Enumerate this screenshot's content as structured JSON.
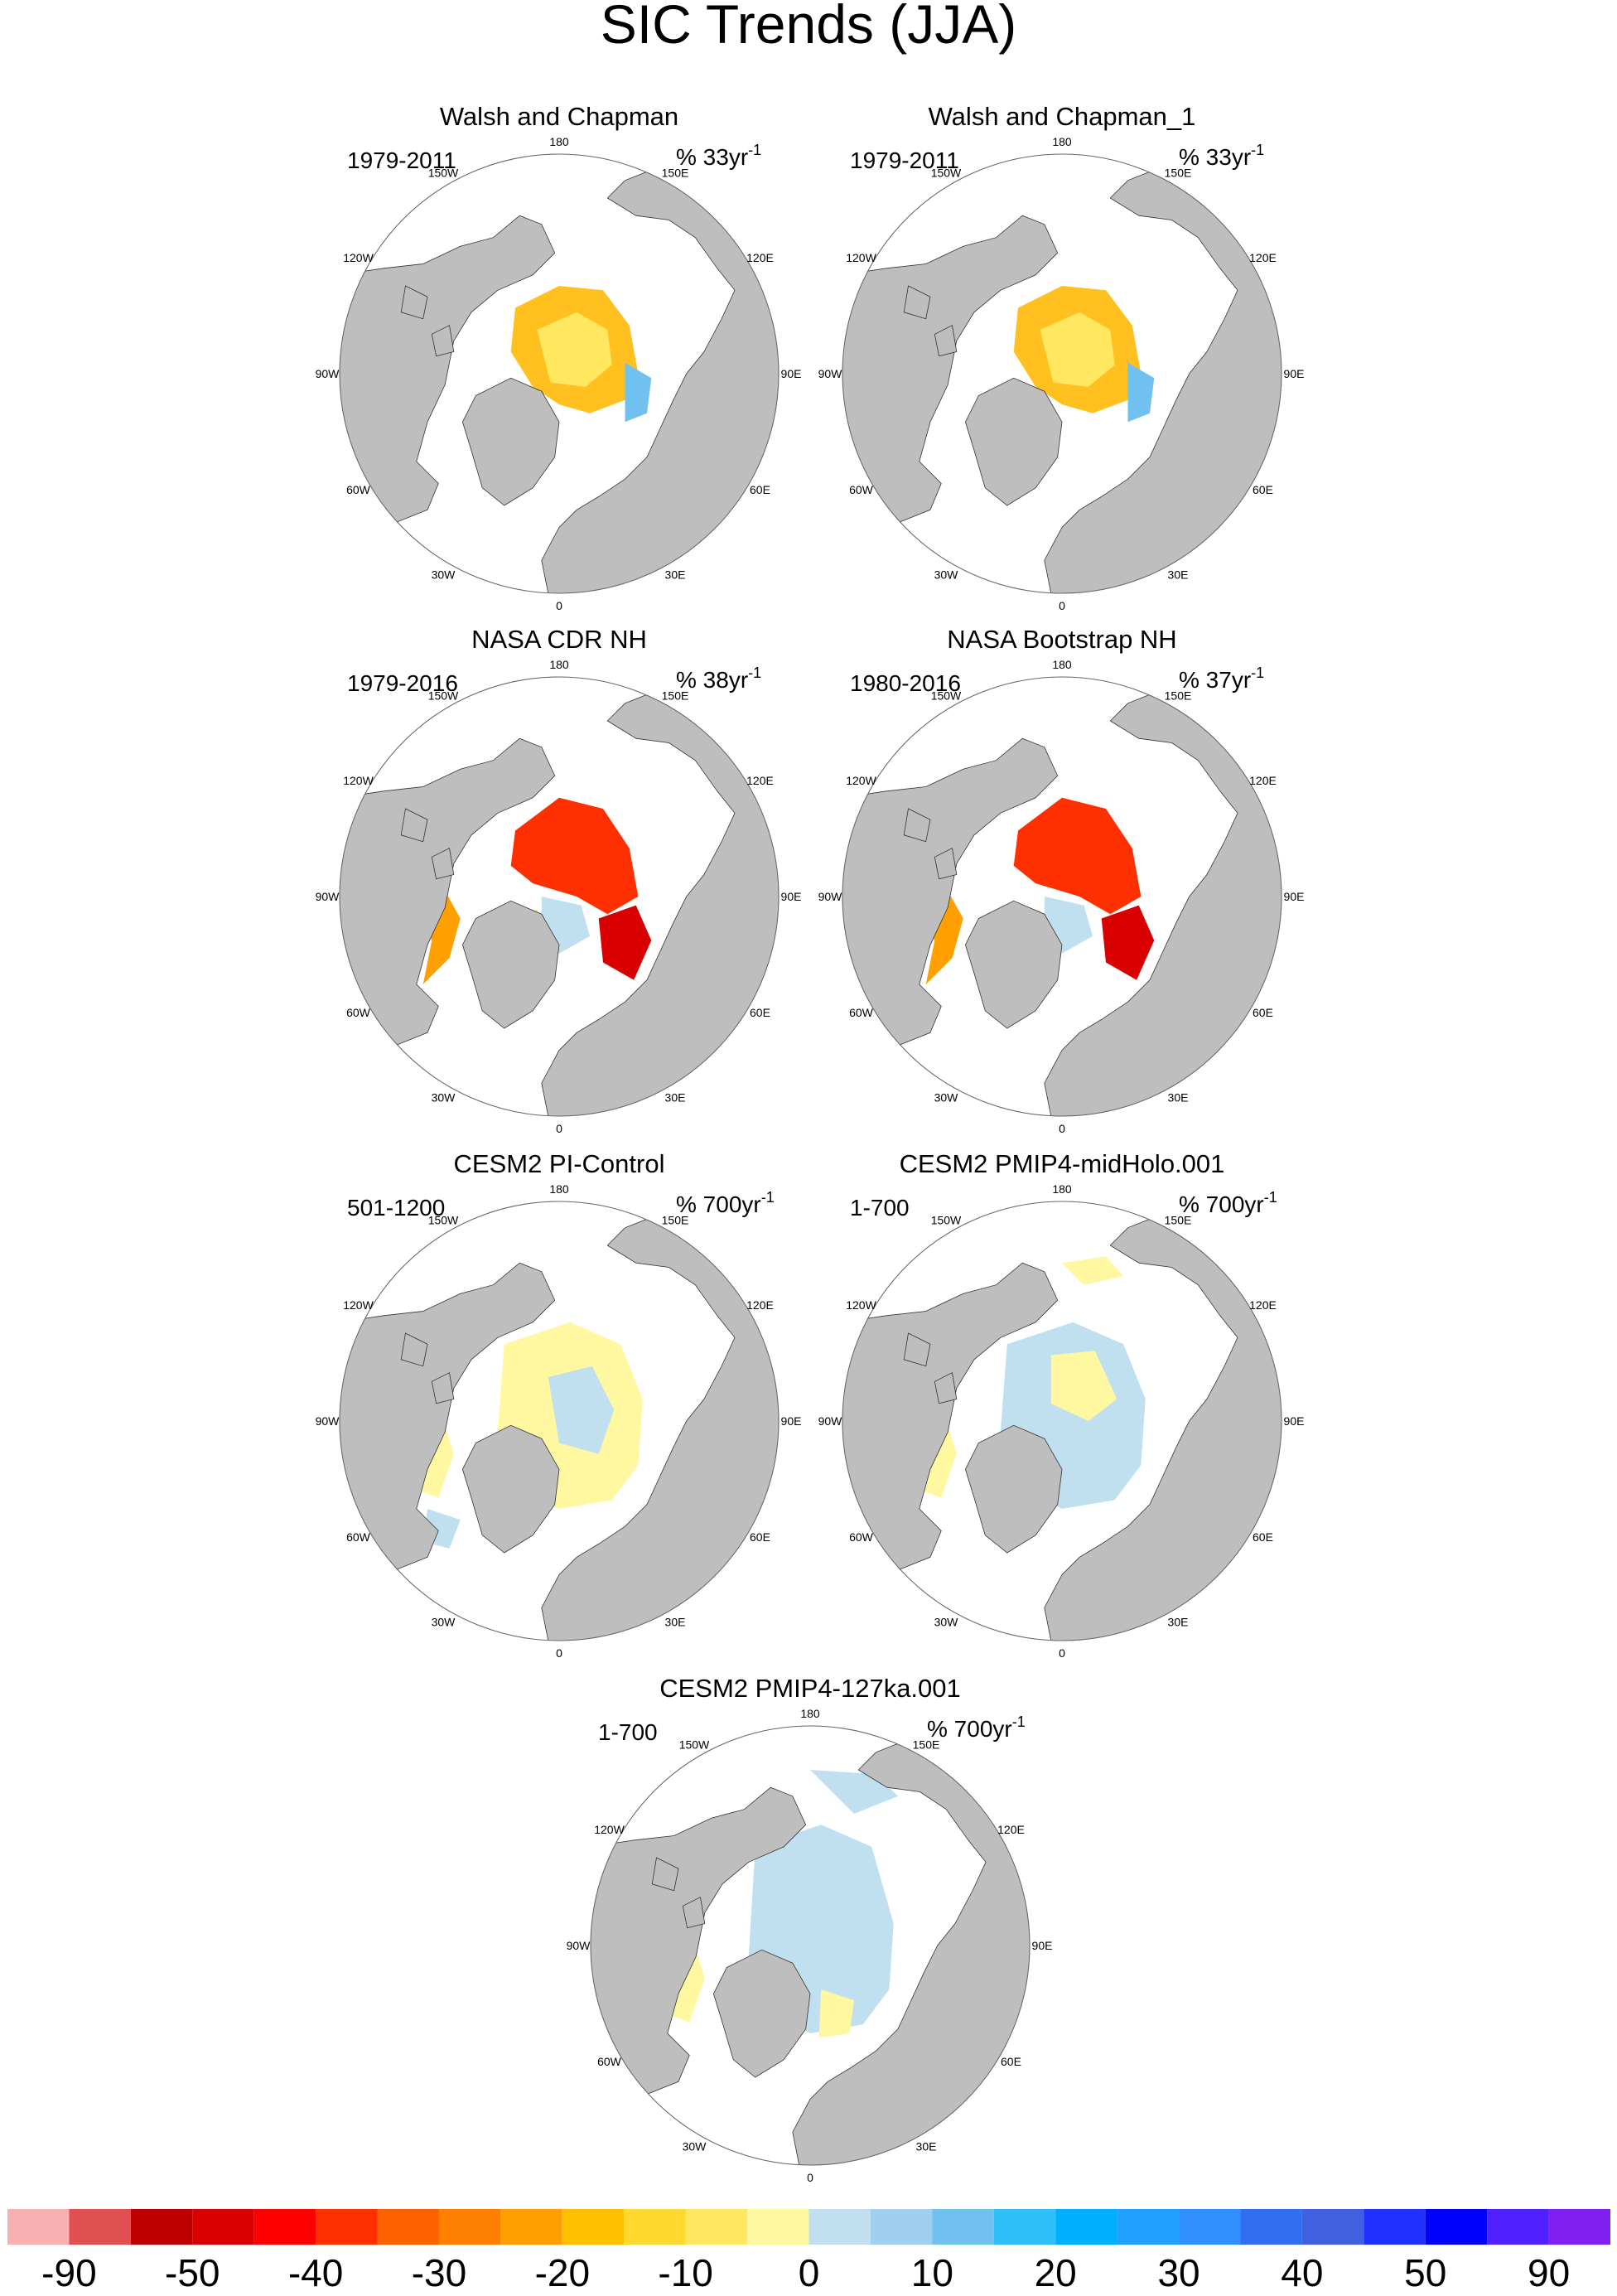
{
  "title": "SIC Trends (JJA)",
  "lon_labels": [
    "180",
    "150E",
    "120E",
    "90E",
    "60E",
    "30E",
    "0",
    "30W",
    "60W",
    "90W",
    "120W",
    "150W"
  ],
  "panels": [
    {
      "title": "Walsh and Chapman",
      "period": "1979-2011",
      "units": "% 33yr",
      "units_sup": "-1"
    },
    {
      "title": "Walsh and Chapman_1",
      "period": "1979-2011",
      "units": "% 33yr",
      "units_sup": "-1"
    },
    {
      "title": "NASA CDR NH",
      "period": "1979-2016",
      "units": "% 38yr",
      "units_sup": "-1"
    },
    {
      "title": "NASA Bootstrap NH",
      "period": "1980-2016",
      "units": "% 37yr",
      "units_sup": "-1"
    },
    {
      "title": "CESM2 PI-Control",
      "period": "501-1200",
      "units": "% 700yr",
      "units_sup": "-1"
    },
    {
      "title": "CESM2 PMIP4-midHolo.001",
      "period": "1-700",
      "units": "% 700yr",
      "units_sup": "-1"
    },
    {
      "title": "CESM2 PMIP4-127ka.001",
      "period": "1-700",
      "units": "% 700yr",
      "units_sup": "-1"
    }
  ],
  "colorbar": {
    "colors": [
      "#f8b0b0",
      "#e05050",
      "#c00000",
      "#d80000",
      "#ff0000",
      "#ff3000",
      "#ff6000",
      "#ff8000",
      "#ffa000",
      "#ffc000",
      "#ffd830",
      "#ffe860",
      "#fff8a0",
      "#c0e0f0",
      "#a0d0f0",
      "#70c0f0",
      "#30c0f8",
      "#00b0ff",
      "#20a0ff",
      "#3090ff",
      "#3070f0",
      "#4060e0",
      "#2030ff",
      "#0000ff",
      "#5020ff",
      "#8020f0"
    ],
    "ticks": [
      -90,
      -50,
      -40,
      -30,
      -20,
      -10,
      0,
      10,
      20,
      30,
      40,
      50,
      90
    ]
  }
}
